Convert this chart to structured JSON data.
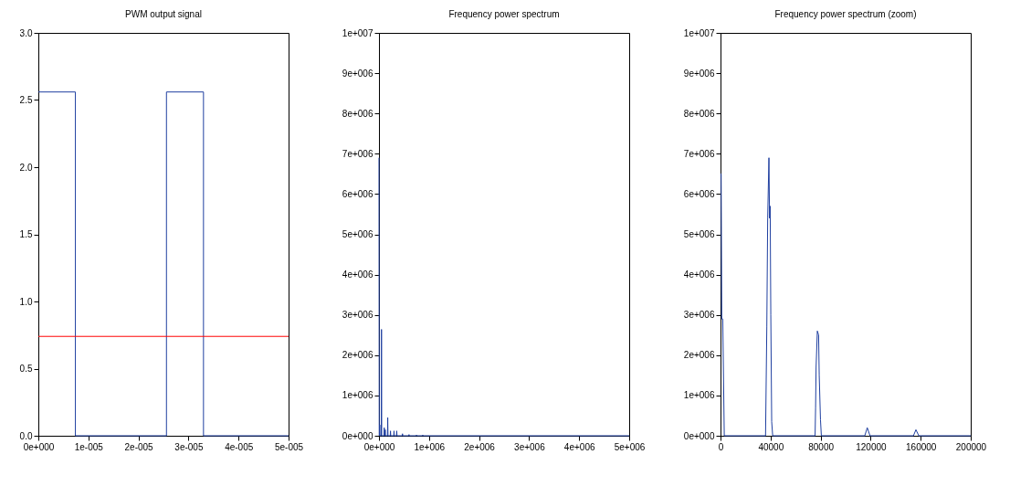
{
  "chart_data": [
    {
      "type": "line",
      "title": "PWM output signal",
      "xlim": [
        0,
        5e-05
      ],
      "ylim": [
        0,
        3
      ],
      "xticks": [
        {
          "value": 0,
          "label": "0e+000"
        },
        {
          "value": 1e-05,
          "label": "1e-005"
        },
        {
          "value": 2e-05,
          "label": "2e-005"
        },
        {
          "value": 3e-05,
          "label": "3e-005"
        },
        {
          "value": 4e-05,
          "label": "4e-005"
        },
        {
          "value": 5e-05,
          "label": "5e-005"
        }
      ],
      "yticks": [
        {
          "value": 0,
          "label": "0.0"
        },
        {
          "value": 0.5,
          "label": "0.5"
        },
        {
          "value": 1,
          "label": "1.0"
        },
        {
          "value": 1.5,
          "label": "1.5"
        },
        {
          "value": 2,
          "label": "2.0"
        },
        {
          "value": 2.5,
          "label": "2.5"
        },
        {
          "value": 3,
          "label": "3.0"
        }
      ],
      "grid": false,
      "marker": "none",
      "line_style": "solid",
      "series": [
        {
          "color": "#1f3fa0",
          "x": [
            0,
            7.4e-06,
            7.4e-06,
            2.56e-05,
            2.56e-05,
            3.3e-05,
            3.3e-05,
            5e-05
          ],
          "values": [
            2.56,
            2.56,
            0,
            0,
            2.56,
            2.56,
            0,
            0
          ]
        }
      ],
      "ref_lines": [
        {
          "axis": "y",
          "value": 0.74,
          "color": "#ff0000"
        }
      ]
    },
    {
      "type": "line",
      "title": "Frequency power spectrum",
      "xlim": [
        0,
        5000000
      ],
      "ylim": [
        0,
        10000000
      ],
      "xticks": [
        {
          "value": 0,
          "label": "0e+000"
        },
        {
          "value": 1000000,
          "label": "1e+006"
        },
        {
          "value": 2000000,
          "label": "2e+006"
        },
        {
          "value": 3000000,
          "label": "3e+006"
        },
        {
          "value": 4000000,
          "label": "4e+006"
        },
        {
          "value": 5000000,
          "label": "5e+006"
        }
      ],
      "yticks": [
        {
          "value": 0,
          "label": "0e+000"
        },
        {
          "value": 1000000,
          "label": "1e+006"
        },
        {
          "value": 2000000,
          "label": "2e+006"
        },
        {
          "value": 3000000,
          "label": "3e+006"
        },
        {
          "value": 4000000,
          "label": "4e+006"
        },
        {
          "value": 5000000,
          "label": "5e+006"
        },
        {
          "value": 6000000,
          "label": "6e+006"
        },
        {
          "value": 7000000,
          "label": "7e+006"
        },
        {
          "value": 8000000,
          "label": "8e+006"
        },
        {
          "value": 9000000,
          "label": "9e+006"
        },
        {
          "value": 10000000,
          "label": "1e+007"
        }
      ],
      "grid": false,
      "marker": "none",
      "line_style": "solid",
      "series": [
        {
          "color": "#1f3fa0",
          "x": [
            0,
            5000,
            10000,
            15000,
            20000,
            45000,
            50000,
            55000,
            100000,
            105000,
            110000,
            120000,
            125000,
            130000,
            170000,
            175000,
            180000,
            225000,
            230000,
            235000,
            295000,
            300000,
            305000,
            350000,
            355000,
            360000,
            465000,
            470000,
            475000,
            595000,
            600000,
            605000,
            745000,
            750000,
            755000,
            870000,
            875000,
            880000,
            5000000
          ],
          "values": [
            6900000,
            0,
            0,
            270000,
            0,
            0,
            2640000,
            0,
            0,
            200000,
            0,
            0,
            150000,
            0,
            0,
            450000,
            0,
            0,
            120000,
            0,
            0,
            120000,
            0,
            0,
            120000,
            0,
            0,
            50000,
            0,
            0,
            30000,
            0,
            0,
            20000,
            0,
            0,
            20000,
            0,
            0
          ]
        }
      ]
    },
    {
      "type": "line",
      "title": "Frequency power spectrum (zoom)",
      "xlim": [
        0,
        200000
      ],
      "ylim": [
        0,
        10000000
      ],
      "xticks": [
        0,
        40000,
        80000,
        120000,
        160000,
        200000
      ],
      "yticks": [
        {
          "value": 0,
          "label": "0e+000"
        },
        {
          "value": 1000000,
          "label": "1e+006"
        },
        {
          "value": 2000000,
          "label": "2e+006"
        },
        {
          "value": 3000000,
          "label": "3e+006"
        },
        {
          "value": 4000000,
          "label": "4e+006"
        },
        {
          "value": 5000000,
          "label": "5e+006"
        },
        {
          "value": 6000000,
          "label": "6e+006"
        },
        {
          "value": 7000000,
          "label": "7e+006"
        },
        {
          "value": 8000000,
          "label": "8e+006"
        },
        {
          "value": 9000000,
          "label": "9e+006"
        },
        {
          "value": 10000000,
          "label": "1e+007"
        }
      ],
      "grid": false,
      "marker": "none",
      "line_style": "solid",
      "series": [
        {
          "color": "#1f3fa0",
          "x": [
            0,
            500,
            1000,
            1800,
            3000,
            36000,
            37000,
            37700,
            38700,
            39200,
            39700,
            40200,
            40900,
            41700,
            75600,
            76000,
            76400,
            77400,
            78400,
            78900,
            79900,
            80600,
            115300,
            117300,
            119500,
            154200,
            156200,
            158500,
            200000
          ],
          "values": [
            6500000,
            6500000,
            2900000,
            2900000,
            0,
            0,
            2700000,
            5400000,
            6900000,
            5400000,
            5700000,
            3000000,
            350000,
            0,
            0,
            700000,
            1700000,
            2600000,
            2500000,
            1500000,
            400000,
            0,
            0,
            200000,
            0,
            0,
            150000,
            0,
            0
          ]
        }
      ]
    }
  ]
}
